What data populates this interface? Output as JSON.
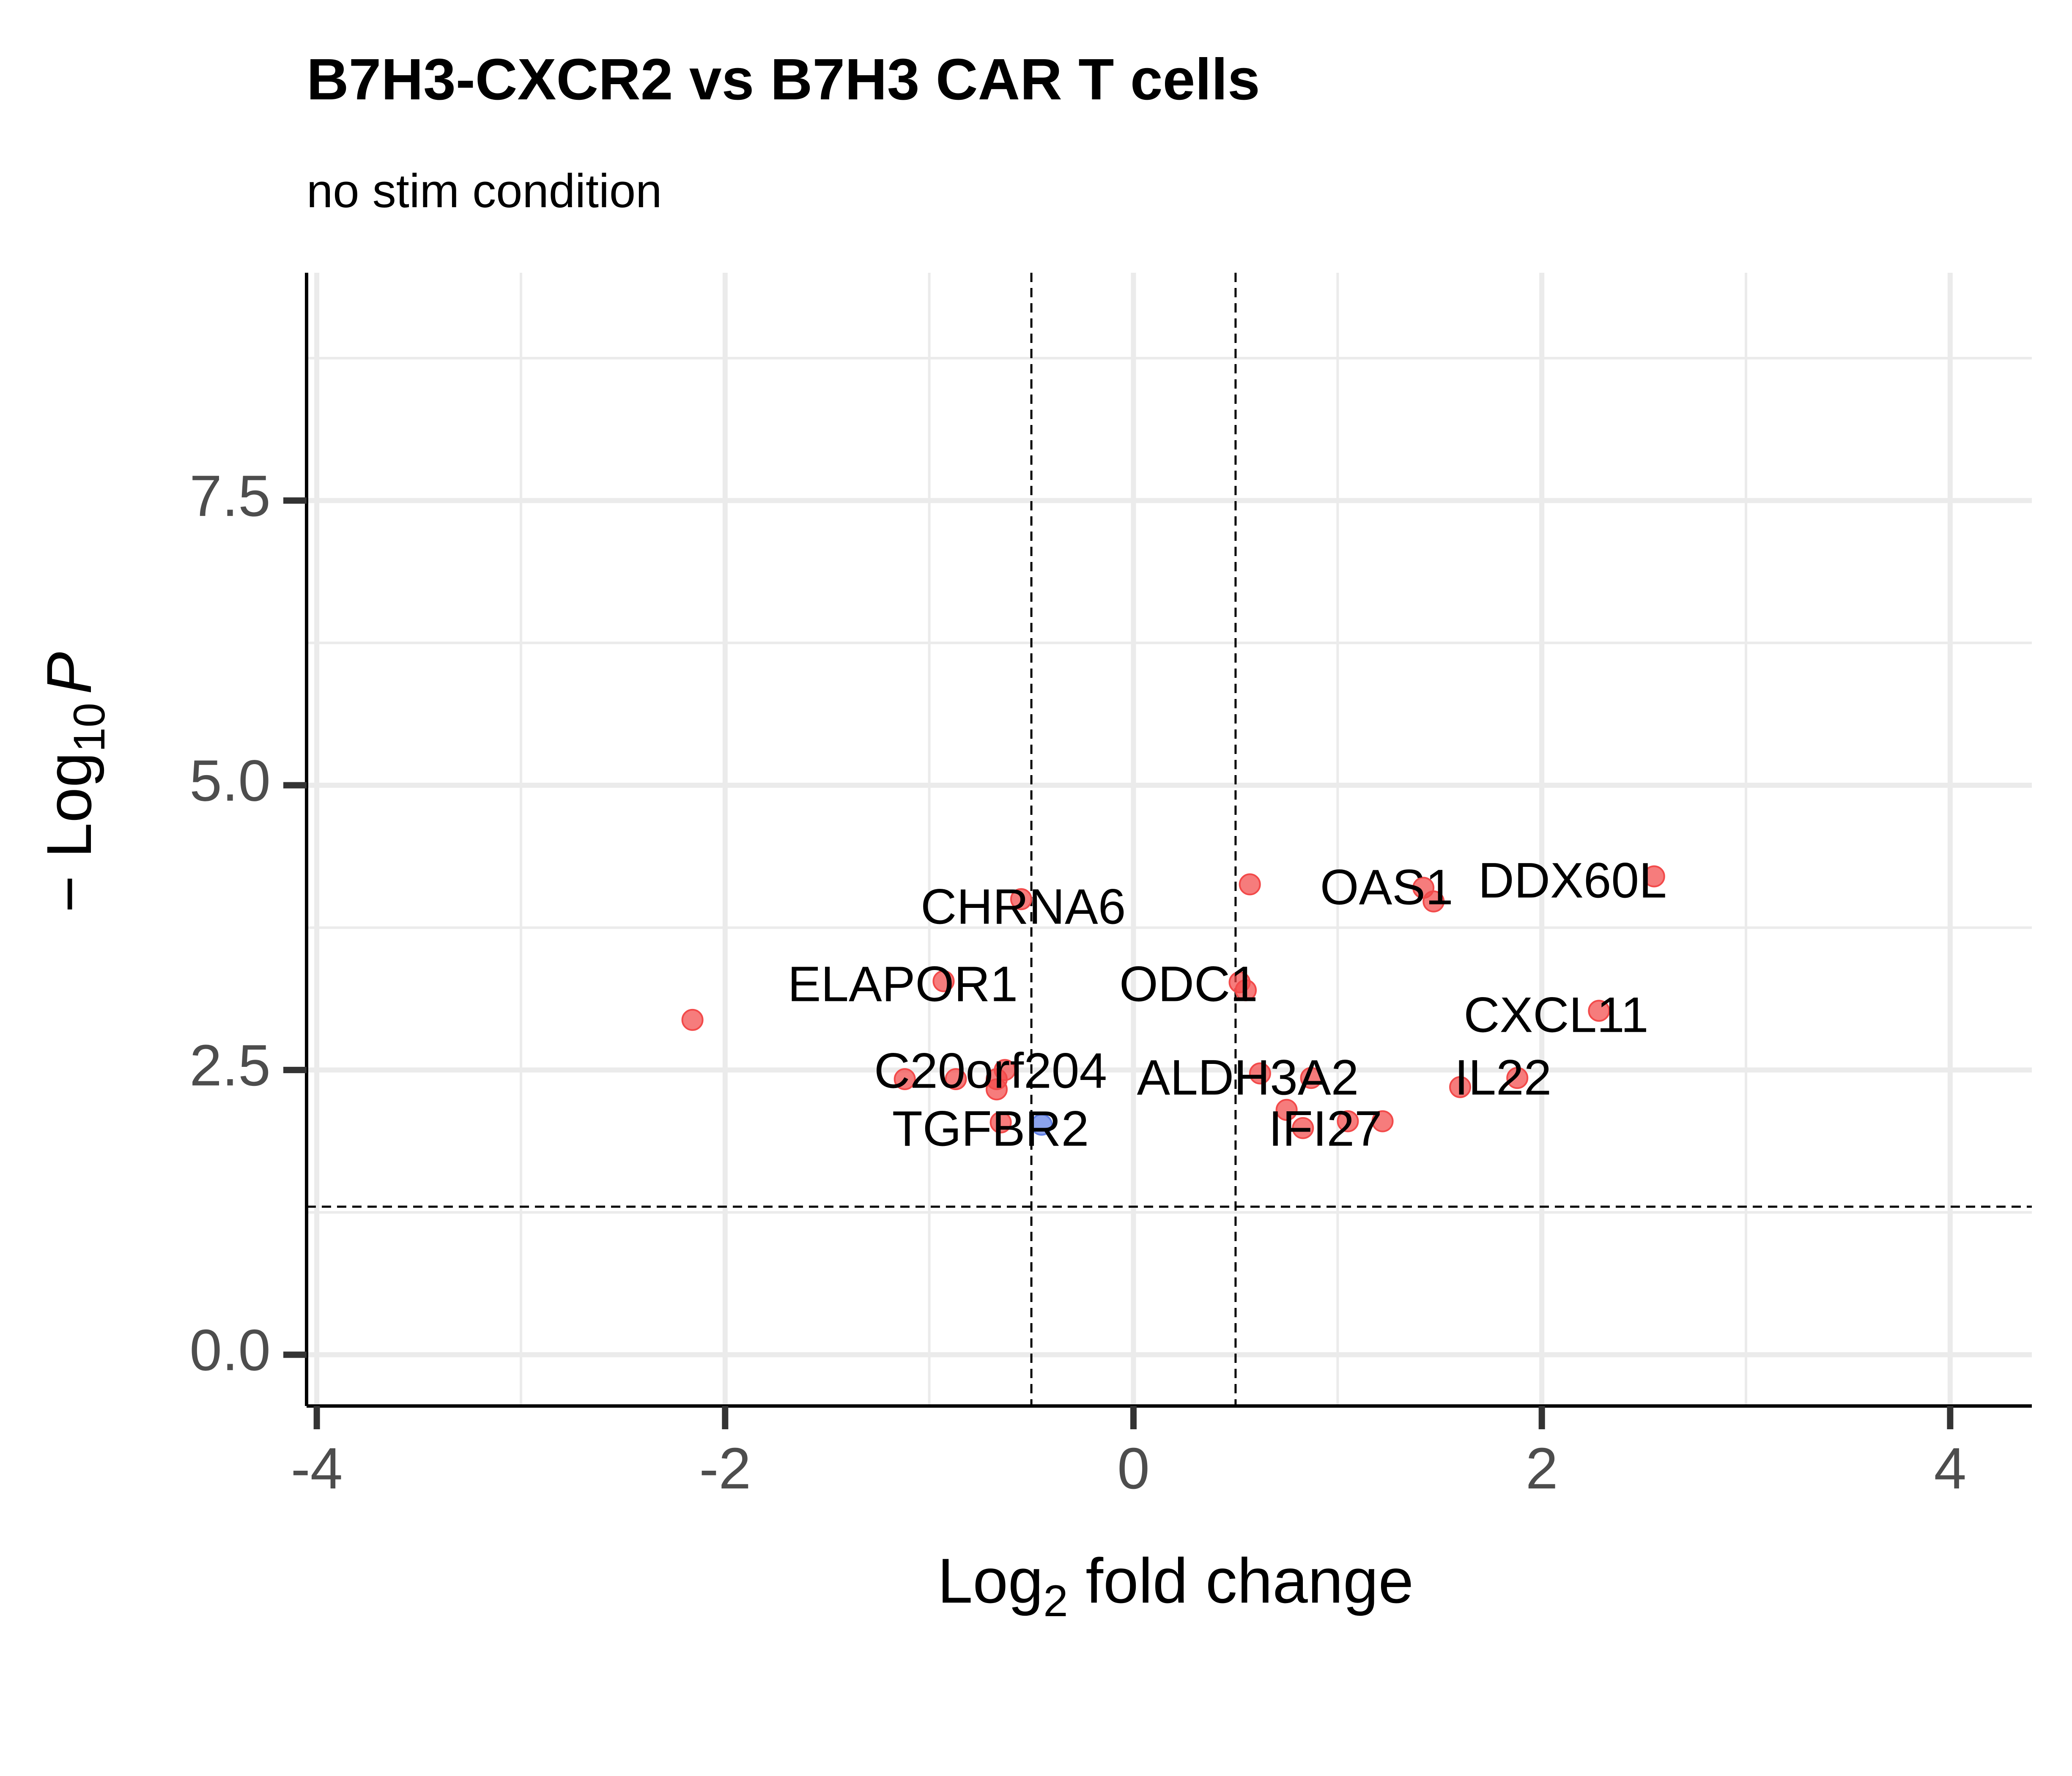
{
  "chart_data": {
    "type": "scatter",
    "title": "B7H3-CXCR2 vs B7H3 CAR T cells",
    "subtitle": "no stim condition",
    "xlabel": {
      "prefix": "Log",
      "sub": "2",
      "suffix": " fold change"
    },
    "ylabel": {
      "prefix": "− Log",
      "sub": "10",
      "suffix": "P"
    },
    "xlim": [
      -4.05,
      4.4
    ],
    "ylim": [
      -0.45,
      9.5
    ],
    "x_ticks": [
      -4,
      -2,
      0,
      2,
      4
    ],
    "x_tick_labels": [
      "-4",
      "-2",
      "0",
      "2",
      "4"
    ],
    "y_ticks": [
      0,
      2.5,
      5,
      7.5
    ],
    "y_tick_labels": [
      "0.0",
      "2.5",
      "5.0",
      "7.5"
    ],
    "grid": true,
    "thresholds": {
      "log2fc": [
        -0.5,
        0.5
      ],
      "neg_log10_p": 1.3
    },
    "colors": {
      "up": "#f24a4a",
      "down": "#5f7fe6",
      "grid": "#ebebeb",
      "tick": "#4d4d4d"
    },
    "points": [
      {
        "x": 2.55,
        "y": 4.2,
        "group": "up"
      },
      {
        "x": 1.42,
        "y": 4.1,
        "group": "up"
      },
      {
        "x": 1.47,
        "y": 3.98,
        "group": "up"
      },
      {
        "x": 0.57,
        "y": 4.13,
        "group": "up"
      },
      {
        "x": -0.55,
        "y": 4.0,
        "group": "up"
      },
      {
        "x": -0.93,
        "y": 3.28,
        "group": "up"
      },
      {
        "x": 0.52,
        "y": 3.27,
        "group": "up"
      },
      {
        "x": 0.55,
        "y": 3.2,
        "group": "up"
      },
      {
        "x": -2.16,
        "y": 2.94,
        "group": "up"
      },
      {
        "x": 2.28,
        "y": 3.02,
        "group": "up"
      },
      {
        "x": -0.63,
        "y": 2.5,
        "group": "up"
      },
      {
        "x": -0.67,
        "y": 2.42,
        "group": "up"
      },
      {
        "x": -0.87,
        "y": 2.42,
        "group": "up"
      },
      {
        "x": -1.12,
        "y": 2.42,
        "group": "up"
      },
      {
        "x": -0.67,
        "y": 2.33,
        "group": "up"
      },
      {
        "x": 0.62,
        "y": 2.47,
        "group": "up"
      },
      {
        "x": 0.87,
        "y": 2.43,
        "group": "up"
      },
      {
        "x": 1.6,
        "y": 2.35,
        "group": "up"
      },
      {
        "x": 1.88,
        "y": 2.43,
        "group": "up"
      },
      {
        "x": 0.75,
        "y": 2.15,
        "group": "up"
      },
      {
        "x": 1.05,
        "y": 2.05,
        "group": "up"
      },
      {
        "x": 1.22,
        "y": 2.05,
        "group": "up"
      },
      {
        "x": 0.83,
        "y": 1.99,
        "group": "up"
      },
      {
        "x": -0.65,
        "y": 2.04,
        "group": "up"
      },
      {
        "x": -0.45,
        "y": 2.02,
        "group": "down"
      }
    ],
    "labels": [
      {
        "text": "DDX60L",
        "x": 2.15,
        "y": 4.13
      },
      {
        "text": "OAS1",
        "x": 1.24,
        "y": 4.07
      },
      {
        "text": "CHRNA6",
        "x": -0.54,
        "y": 3.9
      },
      {
        "text": "ELAPOR1",
        "x": -1.13,
        "y": 3.22
      },
      {
        "text": "ODC1",
        "x": 0.27,
        "y": 3.22
      },
      {
        "text": "CXCL11",
        "x": 2.07,
        "y": 2.95
      },
      {
        "text": "C20orf204",
        "x": -0.7,
        "y": 2.46
      },
      {
        "text": "ALDH3A2",
        "x": 0.56,
        "y": 2.4
      },
      {
        "text": "IL22",
        "x": 1.81,
        "y": 2.4
      },
      {
        "text": "TGFBR2",
        "x": -0.7,
        "y": 1.95
      },
      {
        "text": "IFI27",
        "x": 0.94,
        "y": 1.95
      }
    ]
  }
}
